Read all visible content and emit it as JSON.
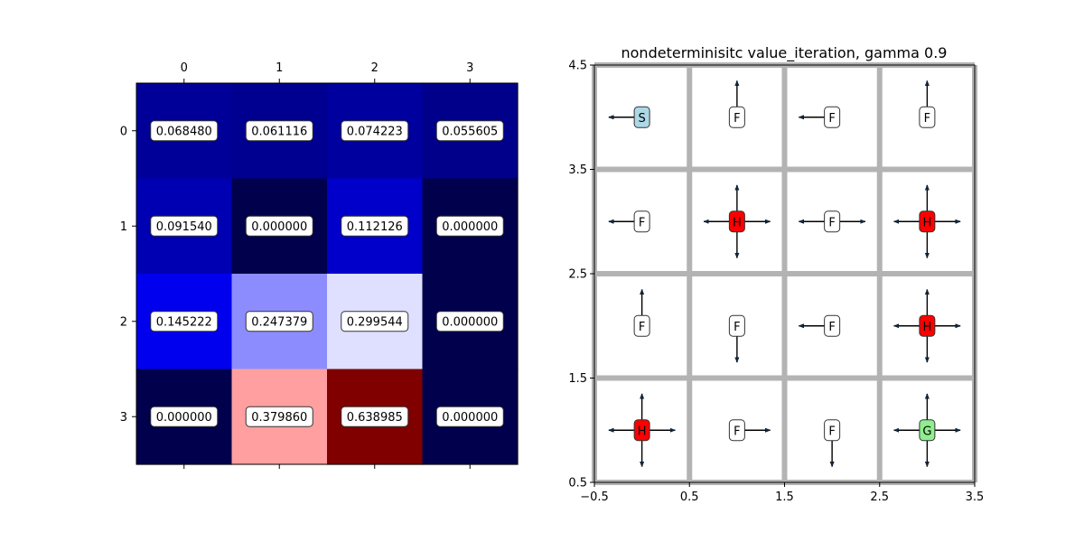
{
  "chart_data": [
    {
      "type": "heatmap",
      "title": "",
      "xlabel": "",
      "ylabel": "",
      "x_ticks": [
        "0",
        "1",
        "2",
        "3"
      ],
      "y_ticks": [
        "0",
        "1",
        "2",
        "3"
      ],
      "colormap": "seismic",
      "vmin": 0.0,
      "vmax": 0.638985,
      "values": [
        [
          0.06848,
          0.061116,
          0.074223,
          0.055605
        ],
        [
          0.09154,
          0.0,
          0.112126,
          0.0
        ],
        [
          0.145222,
          0.247379,
          0.299544,
          0.0
        ],
        [
          0.0,
          0.37986,
          0.638985,
          0.0
        ]
      ],
      "labels": [
        [
          "0.068480",
          "0.061116",
          "0.074223",
          "0.055605"
        ],
        [
          "0.091540",
          "0.000000",
          "0.112126",
          "0.000000"
        ],
        [
          "0.145222",
          "0.247379",
          "0.299544",
          "0.000000"
        ],
        [
          "0.000000",
          "0.379860",
          "0.638985",
          "0.000000"
        ]
      ]
    },
    {
      "type": "policy-grid",
      "title": "nondeterminisitc value_iteration, gamma 0.9",
      "xlim": [
        -0.5,
        3.5
      ],
      "ylim": [
        0.5,
        4.5
      ],
      "x_ticks": [
        "−0.5",
        "0.5",
        "1.5",
        "2.5",
        "3.5"
      ],
      "y_ticks": [
        "0.5",
        "1.5",
        "2.5",
        "3.5",
        "4.5"
      ],
      "grid_color": "#b3b3b3",
      "tile_colors": {
        "S": "#add8e6",
        "F": "#ffffff",
        "H": "#ff0000",
        "G": "#90ee90"
      },
      "cells": [
        {
          "x": 0,
          "y": 4,
          "label": "S",
          "arrows": [
            "left"
          ]
        },
        {
          "x": 1,
          "y": 4,
          "label": "F",
          "arrows": [
            "up"
          ]
        },
        {
          "x": 2,
          "y": 4,
          "label": "F",
          "arrows": [
            "left"
          ]
        },
        {
          "x": 3,
          "y": 4,
          "label": "F",
          "arrows": [
            "up"
          ]
        },
        {
          "x": 0,
          "y": 3,
          "label": "F",
          "arrows": [
            "left"
          ]
        },
        {
          "x": 1,
          "y": 3,
          "label": "H",
          "arrows": [
            "left",
            "up",
            "right",
            "down"
          ]
        },
        {
          "x": 2,
          "y": 3,
          "label": "F",
          "arrows": [
            "left",
            "right"
          ]
        },
        {
          "x": 3,
          "y": 3,
          "label": "H",
          "arrows": [
            "left",
            "up",
            "right",
            "down"
          ]
        },
        {
          "x": 0,
          "y": 2,
          "label": "F",
          "arrows": [
            "up"
          ]
        },
        {
          "x": 1,
          "y": 2,
          "label": "F",
          "arrows": [
            "down"
          ]
        },
        {
          "x": 2,
          "y": 2,
          "label": "F",
          "arrows": [
            "left"
          ]
        },
        {
          "x": 3,
          "y": 2,
          "label": "H",
          "arrows": [
            "left",
            "up",
            "right",
            "down"
          ]
        },
        {
          "x": 0,
          "y": 1,
          "label": "H",
          "arrows": [
            "left",
            "up",
            "right",
            "down"
          ]
        },
        {
          "x": 1,
          "y": 1,
          "label": "F",
          "arrows": [
            "right"
          ]
        },
        {
          "x": 2,
          "y": 1,
          "label": "F",
          "arrows": [
            "down"
          ]
        },
        {
          "x": 3,
          "y": 1,
          "label": "G",
          "arrows": [
            "left",
            "up",
            "right",
            "down"
          ]
        }
      ]
    }
  ]
}
